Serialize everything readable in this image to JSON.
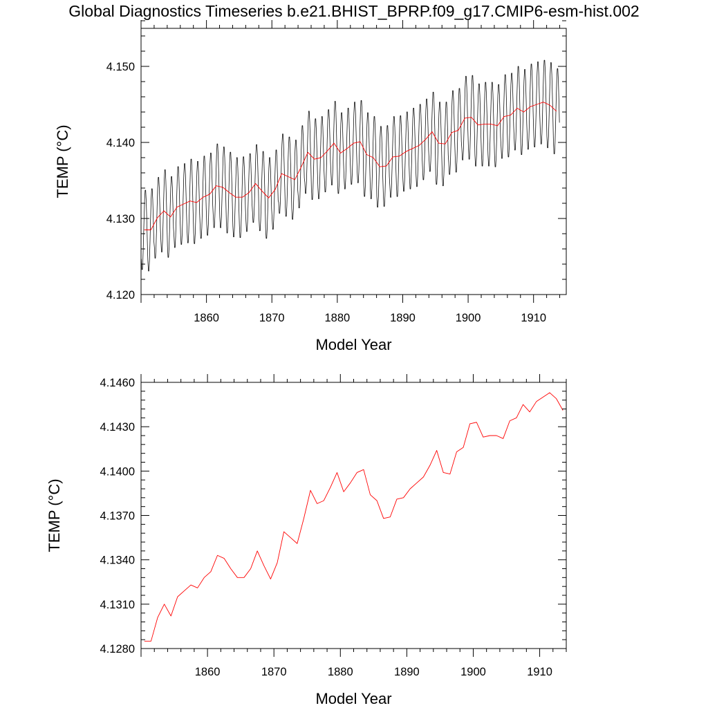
{
  "title": "Global Diagnostics Timeseries b.e21.BHIST_BPRP.f09_g17.CMIP6-esm-hist.002",
  "colors": {
    "monthly": "#000000",
    "annual": "#ff0000",
    "axes": "#000000"
  },
  "chart_data": [
    {
      "type": "line",
      "xlabel": "Model Year",
      "ylabel": "TEMP (°C)",
      "xlim": [
        1850,
        1915
      ],
      "ylim": [
        4.12,
        4.155
      ],
      "xticks": [
        1860,
        1870,
        1880,
        1890,
        1900,
        1910
      ],
      "xtick_labels": [
        "1860",
        "1870",
        "1880",
        "1890",
        "1900",
        "1910"
      ],
      "yticks": [
        4.12,
        4.13,
        4.14,
        4.15
      ],
      "ytick_labels": [
        "4.120",
        "4.130",
        "4.140",
        "4.150"
      ],
      "grid": false,
      "series": [
        {
          "style": "monthly",
          "color": "#000000",
          "x_start": 1850.04,
          "x_step": 0.0833333,
          "annual_cycle_amplitude": [
            0.0054,
            0.0056,
            0.0055,
            0.0056,
            0.0055,
            0.0055,
            0.0055,
            0.0057,
            0.0056,
            0.0056,
            0.0056,
            0.0057,
            0.0055,
            0.0055,
            0.0054,
            0.0055,
            0.0053,
            0.0053,
            0.0054,
            0.0055,
            0.0054,
            0.0054,
            0.0054,
            0.0054,
            0.0056,
            0.0056,
            0.0055,
            0.0056,
            0.0056,
            0.0057,
            0.0055,
            0.0055,
            0.0056,
            0.0056,
            0.0057,
            0.0056,
            0.0055,
            0.0055,
            0.0055,
            0.0055,
            0.0054,
            0.0055,
            0.0056,
            0.0055,
            0.0054,
            0.0056,
            0.0057,
            0.0057,
            0.0057,
            0.0057,
            0.0057,
            0.0056,
            0.0057,
            0.0057,
            0.0056,
            0.0057,
            0.0057,
            0.0057,
            0.0058,
            0.0058,
            0.0058,
            0.0057,
            0.0058,
            0.0058
          ],
          "annual_means": [
            4.1285,
            4.1285,
            4.1301,
            4.131,
            4.1302,
            4.1315,
            4.1319,
            4.1323,
            4.1321,
            4.1328,
            4.1332,
            4.1343,
            4.1341,
            4.1334,
            4.1328,
            4.1328,
            4.1334,
            4.1346,
            4.1336,
            4.1327,
            4.1338,
            4.1359,
            4.1355,
            4.1351,
            4.1368,
            4.1387,
            4.1378,
            4.138,
            4.1389,
            4.1399,
            4.1386,
            4.1392,
            4.1399,
            4.1401,
            4.1384,
            4.138,
            4.1368,
            4.1369,
            4.1381,
            4.1382,
            4.1388,
            4.1392,
            4.1396,
            4.1404,
            4.1414,
            4.1399,
            4.1398,
            4.1413,
            4.1416,
            4.1432,
            4.1433,
            4.1423,
            4.1424,
            4.1424,
            4.1422,
            4.1434,
            4.1436,
            4.1445,
            4.144,
            4.1447,
            4.145,
            4.1453,
            4.1449,
            4.1441
          ]
        },
        {
          "style": "annual",
          "color": "#ff0000",
          "x": [
            1850.5,
            1851.5,
            1852.5,
            1853.5,
            1854.5,
            1855.5,
            1856.5,
            1857.5,
            1858.5,
            1859.5,
            1860.5,
            1861.5,
            1862.5,
            1863.5,
            1864.5,
            1865.5,
            1866.5,
            1867.5,
            1868.5,
            1869.5,
            1870.5,
            1871.5,
            1872.5,
            1873.5,
            1874.5,
            1875.5,
            1876.5,
            1877.5,
            1878.5,
            1879.5,
            1880.5,
            1881.5,
            1882.5,
            1883.5,
            1884.5,
            1885.5,
            1886.5,
            1887.5,
            1888.5,
            1889.5,
            1890.5,
            1891.5,
            1892.5,
            1893.5,
            1894.5,
            1895.5,
            1896.5,
            1897.5,
            1898.5,
            1899.5,
            1900.5,
            1901.5,
            1902.5,
            1903.5,
            1904.5,
            1905.5,
            1906.5,
            1907.5,
            1908.5,
            1909.5,
            1910.5,
            1911.5,
            1912.5,
            1913.5
          ],
          "values": [
            4.1285,
            4.1285,
            4.1301,
            4.131,
            4.1302,
            4.1315,
            4.1319,
            4.1323,
            4.1321,
            4.1328,
            4.1332,
            4.1343,
            4.1341,
            4.1334,
            4.1328,
            4.1328,
            4.1334,
            4.1346,
            4.1336,
            4.1327,
            4.1338,
            4.1359,
            4.1355,
            4.1351,
            4.1368,
            4.1387,
            4.1378,
            4.138,
            4.1389,
            4.1399,
            4.1386,
            4.1392,
            4.1399,
            4.1401,
            4.1384,
            4.138,
            4.1368,
            4.1369,
            4.1381,
            4.1382,
            4.1388,
            4.1392,
            4.1396,
            4.1404,
            4.1414,
            4.1399,
            4.1398,
            4.1413,
            4.1416,
            4.1432,
            4.1433,
            4.1423,
            4.1424,
            4.1424,
            4.1422,
            4.1434,
            4.1436,
            4.1445,
            4.144,
            4.1447,
            4.145,
            4.1453,
            4.1449,
            4.1441
          ]
        }
      ]
    },
    {
      "type": "line",
      "xlabel": "Model Year",
      "ylabel": "TEMP (°C)",
      "xlim": [
        1850,
        1914
      ],
      "ylim": [
        4.128,
        4.146
      ],
      "xticks": [
        1860,
        1870,
        1880,
        1890,
        1900,
        1910
      ],
      "xtick_labels": [
        "1860",
        "1870",
        "1880",
        "1890",
        "1900",
        "1910"
      ],
      "yticks": [
        4.128,
        4.131,
        4.134,
        4.137,
        4.14,
        4.143,
        4.146
      ],
      "ytick_labels": [
        "4.1280",
        "4.1310",
        "4.1340",
        "4.1370",
        "4.1400",
        "4.1430",
        "4.1460"
      ],
      "grid": false,
      "series": [
        {
          "style": "annual",
          "color": "#ff0000",
          "x": [
            1850.5,
            1851.5,
            1852.5,
            1853.5,
            1854.5,
            1855.5,
            1856.5,
            1857.5,
            1858.5,
            1859.5,
            1860.5,
            1861.5,
            1862.5,
            1863.5,
            1864.5,
            1865.5,
            1866.5,
            1867.5,
            1868.5,
            1869.5,
            1870.5,
            1871.5,
            1872.5,
            1873.5,
            1874.5,
            1875.5,
            1876.5,
            1877.5,
            1878.5,
            1879.5,
            1880.5,
            1881.5,
            1882.5,
            1883.5,
            1884.5,
            1885.5,
            1886.5,
            1887.5,
            1888.5,
            1889.5,
            1890.5,
            1891.5,
            1892.5,
            1893.5,
            1894.5,
            1895.5,
            1896.5,
            1897.5,
            1898.5,
            1899.5,
            1900.5,
            1901.5,
            1902.5,
            1903.5,
            1904.5,
            1905.5,
            1906.5,
            1907.5,
            1908.5,
            1909.5,
            1910.5,
            1911.5,
            1912.5,
            1913.5
          ],
          "values": [
            4.1285,
            4.1285,
            4.1301,
            4.131,
            4.1302,
            4.1315,
            4.1319,
            4.1323,
            4.1321,
            4.1328,
            4.1332,
            4.1343,
            4.1341,
            4.1334,
            4.1328,
            4.1328,
            4.1334,
            4.1346,
            4.1336,
            4.1327,
            4.1338,
            4.1359,
            4.1355,
            4.1351,
            4.1368,
            4.1387,
            4.1378,
            4.138,
            4.1389,
            4.1399,
            4.1386,
            4.1392,
            4.1399,
            4.1401,
            4.1384,
            4.138,
            4.1368,
            4.1369,
            4.1381,
            4.1382,
            4.1388,
            4.1392,
            4.1396,
            4.1404,
            4.1414,
            4.1399,
            4.1398,
            4.1413,
            4.1416,
            4.1432,
            4.1433,
            4.1423,
            4.1424,
            4.1424,
            4.1422,
            4.1434,
            4.1436,
            4.1445,
            4.144,
            4.1447,
            4.145,
            4.1453,
            4.1449,
            4.1441
          ]
        }
      ]
    }
  ]
}
